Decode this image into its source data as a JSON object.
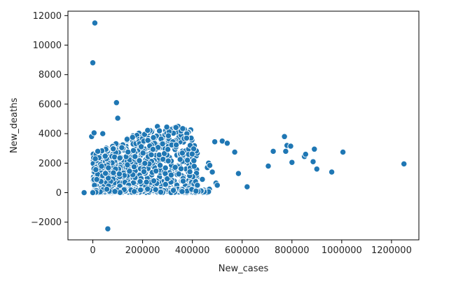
{
  "chart_data": {
    "type": "scatter",
    "xlabel": "New_cases",
    "ylabel": "New_deaths",
    "xlim": [
      -100000,
      1310000
    ],
    "ylim": [
      -3200,
      12300
    ],
    "x_ticks": [
      0,
      200000,
      400000,
      600000,
      800000,
      1000000,
      1200000
    ],
    "x_tick_labels": [
      "0",
      "200000",
      "400000",
      "600000",
      "800000",
      "1000000",
      "1200000"
    ],
    "y_ticks": [
      -2000,
      0,
      2000,
      4000,
      6000,
      8000,
      10000,
      12000
    ],
    "y_tick_labels": [
      "−2000",
      "0",
      "2000",
      "4000",
      "6000",
      "8000",
      "10000",
      "12000"
    ],
    "grid": false,
    "marker_color": "#1f77b4",
    "marker_edge_color": "#ffffff",
    "outliers": [
      {
        "x": 8000,
        "y": 11500
      },
      {
        "x": 0,
        "y": 8800
      },
      {
        "x": 95000,
        "y": 6100
      },
      {
        "x": 100000,
        "y": 5050
      },
      {
        "x": 60000,
        "y": -2450
      },
      {
        "x": -35000,
        "y": 0
      },
      {
        "x": -5000,
        "y": 3800
      },
      {
        "x": 5000,
        "y": 4050
      },
      {
        "x": 40000,
        "y": 4000
      },
      {
        "x": 0,
        "y": 0
      },
      {
        "x": 10000,
        "y": 2300
      },
      {
        "x": 20000,
        "y": 2800
      }
    ],
    "sparse_points": [
      {
        "x": 380000,
        "y": 2200
      },
      {
        "x": 420000,
        "y": 500
      },
      {
        "x": 440000,
        "y": 900
      },
      {
        "x": 460000,
        "y": 1700
      },
      {
        "x": 465000,
        "y": 2000
      },
      {
        "x": 470000,
        "y": 1850
      },
      {
        "x": 480000,
        "y": 1400
      },
      {
        "x": 490000,
        "y": 3450
      },
      {
        "x": 495000,
        "y": 650
      },
      {
        "x": 500000,
        "y": 500
      },
      {
        "x": 520000,
        "y": 3500
      },
      {
        "x": 540000,
        "y": 3350
      },
      {
        "x": 570000,
        "y": 2750
      },
      {
        "x": 585000,
        "y": 1300
      },
      {
        "x": 620000,
        "y": 400
      },
      {
        "x": 705000,
        "y": 1800
      },
      {
        "x": 725000,
        "y": 2800
      },
      {
        "x": 770000,
        "y": 3800
      },
      {
        "x": 775000,
        "y": 2800
      },
      {
        "x": 780000,
        "y": 3200
      },
      {
        "x": 795000,
        "y": 3150
      },
      {
        "x": 800000,
        "y": 2050
      },
      {
        "x": 850000,
        "y": 2450
      },
      {
        "x": 855000,
        "y": 2600
      },
      {
        "x": 885000,
        "y": 2100
      },
      {
        "x": 890000,
        "y": 2950
      },
      {
        "x": 900000,
        "y": 1600
      },
      {
        "x": 960000,
        "y": 1400
      },
      {
        "x": 1005000,
        "y": 2750
      },
      {
        "x": 1250000,
        "y": 1950
      }
    ],
    "dense_cluster": {
      "x_range": [
        0,
        420000
      ],
      "y_range": [
        0,
        4500
      ],
      "point_count": 650,
      "seed": 7
    },
    "baseline_band": {
      "x_range": [
        0,
        470000
      ],
      "y_range": [
        0,
        250
      ],
      "point_count": 160,
      "seed": 11
    }
  }
}
